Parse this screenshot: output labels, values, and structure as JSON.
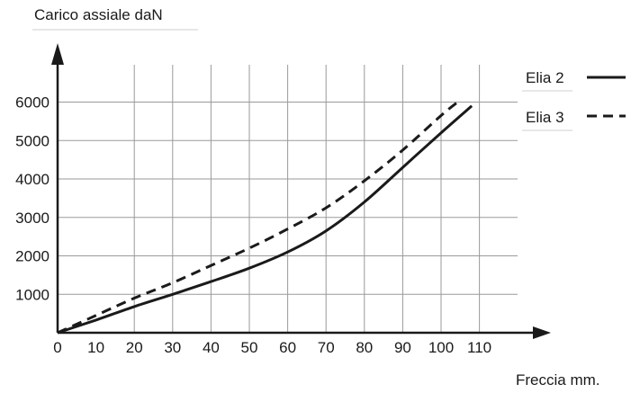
{
  "chart_data": {
    "type": "line",
    "ylabel": "Carico assiale  daN",
    "xlabel": "Freccia  mm.",
    "x_ticks": [
      0,
      10,
      20,
      30,
      40,
      50,
      60,
      70,
      80,
      90,
      100,
      110
    ],
    "y_ticks": [
      1000,
      2000,
      3000,
      4000,
      5000,
      6000
    ],
    "xlim": [
      0,
      120
    ],
    "ylim": [
      0,
      7000
    ],
    "x_gridlines": [
      20,
      30,
      40,
      50,
      60,
      70,
      80,
      90,
      100,
      110
    ],
    "y_gridlines": [
      1000,
      2000,
      3000,
      4000,
      5000,
      6000
    ],
    "grid": true,
    "legend_position": "top-right",
    "series": [
      {
        "name": "Elia 2",
        "style": "solid",
        "x": [
          0,
          10,
          20,
          30,
          40,
          50,
          60,
          70,
          80,
          90,
          100,
          108
        ],
        "y": [
          0,
          330,
          680,
          1000,
          1330,
          1680,
          2100,
          2650,
          3400,
          4300,
          5200,
          5900
        ]
      },
      {
        "name": "Elia 3",
        "style": "dashed",
        "x": [
          0,
          10,
          20,
          30,
          40,
          50,
          60,
          70,
          80,
          90,
          100,
          105
        ],
        "y": [
          0,
          450,
          900,
          1300,
          1750,
          2200,
          2700,
          3250,
          3950,
          4750,
          5650,
          6050
        ]
      }
    ]
  }
}
